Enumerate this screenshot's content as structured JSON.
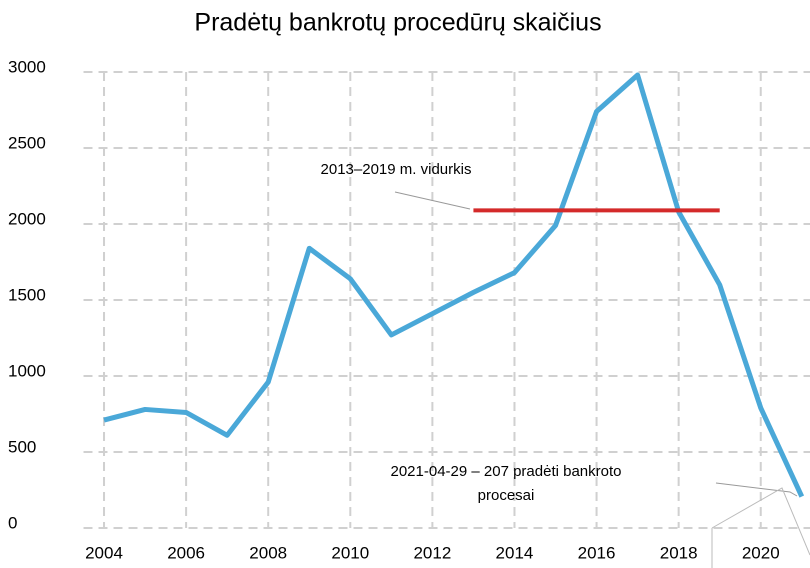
{
  "chart_data": {
    "type": "line",
    "title": "Pradėtų bankrotų procedūrų skaičius",
    "x": [
      2004,
      2005,
      2006,
      2007,
      2008,
      2009,
      2010,
      2011,
      2012,
      2013,
      2014,
      2015,
      2016,
      2017,
      2018,
      2019,
      2020,
      2021
    ],
    "series": [
      {
        "name": "Pradėtų bankrotų procedūrų skaičius",
        "color": "#4aa8d8",
        "values": [
          710,
          780,
          760,
          610,
          960,
          1840,
          1640,
          1270,
          1410,
          1550,
          1680,
          1990,
          2740,
          2980,
          2080,
          1600,
          790,
          207
        ]
      }
    ],
    "average": {
      "label": "2013–2019 m. vidurkis",
      "value": 2090,
      "x": [
        2013,
        2019
      ],
      "color": "#d42a2a"
    },
    "point_annotation": {
      "line1": "2021-04-29 – 207 pradėti bankroto",
      "line2": "procesai"
    },
    "xlim": [
      2003.5,
      2021.2
    ],
    "xticks": [
      2004,
      2006,
      2008,
      2010,
      2012,
      2014,
      2016,
      2018,
      2020
    ],
    "ylim": [
      0,
      3000
    ],
    "yticks": [
      0,
      500,
      1000,
      1500,
      2000,
      2500,
      3000
    ],
    "grid": true
  }
}
